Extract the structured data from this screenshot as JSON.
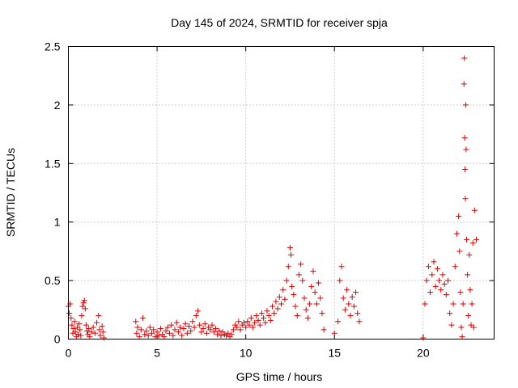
{
  "chart_data": {
    "type": "scatter",
    "title": "Day 145 of 2024, SRMTID for receiver spja",
    "xlabel": "GPS time / hours",
    "ylabel": "SRMTID / TECUs",
    "xlim": [
      0,
      24
    ],
    "ylim": [
      0,
      2.5
    ],
    "xticks": [
      0,
      5,
      10,
      15,
      20
    ],
    "yticks": [
      0,
      0.5,
      1,
      1.5,
      2,
      2.5
    ],
    "ytick_labels": [
      "0",
      "0.5",
      "1",
      "1.5",
      "2",
      "2.5"
    ],
    "grid": true,
    "marker": "+",
    "series": [
      {
        "name": "SRMTID",
        "color": "#e00000",
        "points": [
          [
            0.0,
            0.28
          ],
          [
            0.05,
            0.22
          ],
          [
            0.1,
            0.3
          ],
          [
            0.15,
            0.18
          ],
          [
            0.2,
            0.12
          ],
          [
            0.25,
            0.05
          ],
          [
            0.3,
            0.09
          ],
          [
            0.35,
            0.15
          ],
          [
            0.4,
            0.06
          ],
          [
            0.45,
            0.02
          ],
          [
            0.5,
            0.1
          ],
          [
            0.55,
            0.04
          ],
          [
            0.6,
            0.13
          ],
          [
            0.65,
            0.08
          ],
          [
            0.7,
            0.03
          ],
          [
            0.75,
            0.2
          ],
          [
            0.8,
            0.28
          ],
          [
            0.85,
            0.31
          ],
          [
            0.9,
            0.33
          ],
          [
            0.95,
            0.26
          ],
          [
            1.0,
            0.12
          ],
          [
            1.05,
            0.07
          ],
          [
            1.1,
            0.04
          ],
          [
            1.15,
            0.09
          ],
          [
            1.2,
            0.02
          ],
          [
            1.3,
            0.06
          ],
          [
            1.4,
            0.1
          ],
          [
            1.5,
            0.05
          ],
          [
            1.6,
            0.14
          ],
          [
            1.7,
            0.2
          ],
          [
            1.75,
            0.08
          ],
          [
            1.8,
            0.03
          ],
          [
            1.9,
            0.11
          ],
          [
            1.95,
            0.06
          ],
          [
            2.0,
            0.01
          ],
          [
            3.8,
            0.15
          ],
          [
            3.85,
            0.05
          ],
          [
            3.9,
            0.1
          ],
          [
            4.0,
            0.02
          ],
          [
            4.1,
            0.08
          ],
          [
            4.2,
            0.18
          ],
          [
            4.3,
            0.04
          ],
          [
            4.4,
            0.07
          ],
          [
            4.5,
            0.03
          ],
          [
            4.6,
            0.1
          ],
          [
            4.7,
            0.05
          ],
          [
            4.8,
            0.08
          ],
          [
            4.9,
            0.02
          ],
          [
            5.0,
            0.06
          ],
          [
            5.1,
            0.03
          ],
          [
            5.2,
            0.09
          ],
          [
            5.3,
            0.04
          ],
          [
            5.4,
            0.02
          ],
          [
            5.5,
            0.07
          ],
          [
            5.6,
            0.1
          ],
          [
            5.7,
            0.05
          ],
          [
            5.8,
            0.12
          ],
          [
            5.9,
            0.03
          ],
          [
            6.0,
            0.08
          ],
          [
            6.1,
            0.14
          ],
          [
            6.2,
            0.06
          ],
          [
            6.3,
            0.1
          ],
          [
            6.4,
            0.03
          ],
          [
            6.5,
            0.09
          ],
          [
            6.6,
            0.13
          ],
          [
            6.7,
            0.05
          ],
          [
            6.8,
            0.11
          ],
          [
            6.9,
            0.07
          ],
          [
            7.0,
            0.15
          ],
          [
            7.1,
            0.1
          ],
          [
            7.2,
            0.2
          ],
          [
            7.3,
            0.24
          ],
          [
            7.4,
            0.12
          ],
          [
            7.5,
            0.06
          ],
          [
            7.6,
            0.09
          ],
          [
            7.7,
            0.13
          ],
          [
            7.8,
            0.05
          ],
          [
            7.9,
            0.1
          ],
          [
            8.0,
            0.08
          ],
          [
            8.1,
            0.12
          ],
          [
            8.2,
            0.06
          ],
          [
            8.3,
            0.09
          ],
          [
            8.4,
            0.04
          ],
          [
            8.5,
            0.07
          ],
          [
            8.6,
            0.03
          ],
          [
            8.7,
            0.06
          ],
          [
            8.8,
            0.04
          ],
          [
            8.9,
            0.03
          ],
          [
            9.0,
            0.05
          ],
          [
            9.1,
            0.02
          ],
          [
            9.2,
            0.04
          ],
          [
            9.3,
            0.08
          ],
          [
            9.4,
            0.12
          ],
          [
            9.5,
            0.1
          ],
          [
            9.6,
            0.15
          ],
          [
            9.7,
            0.08
          ],
          [
            9.8,
            0.12
          ],
          [
            9.9,
            0.14
          ],
          [
            10.0,
            0.1
          ],
          [
            10.1,
            0.15
          ],
          [
            10.2,
            0.12
          ],
          [
            10.3,
            0.18
          ],
          [
            10.4,
            0.1
          ],
          [
            10.5,
            0.14
          ],
          [
            10.6,
            0.2
          ],
          [
            10.7,
            0.16
          ],
          [
            10.8,
            0.12
          ],
          [
            10.9,
            0.22
          ],
          [
            11.0,
            0.18
          ],
          [
            11.1,
            0.14
          ],
          [
            11.2,
            0.24
          ],
          [
            11.3,
            0.2
          ],
          [
            11.4,
            0.16
          ],
          [
            11.5,
            0.28
          ],
          [
            11.6,
            0.22
          ],
          [
            11.7,
            0.32
          ],
          [
            11.8,
            0.26
          ],
          [
            11.9,
            0.36
          ],
          [
            12.0,
            0.3
          ],
          [
            12.1,
            0.42
          ],
          [
            12.2,
            0.34
          ],
          [
            12.3,
            0.5
          ],
          [
            12.4,
            0.62
          ],
          [
            12.5,
            0.78
          ],
          [
            12.55,
            0.72
          ],
          [
            12.6,
            0.45
          ],
          [
            12.7,
            0.38
          ],
          [
            12.8,
            0.28
          ],
          [
            12.9,
            0.2
          ],
          [
            13.0,
            0.55
          ],
          [
            13.1,
            0.64
          ],
          [
            13.2,
            0.5
          ],
          [
            13.3,
            0.35
          ],
          [
            13.4,
            0.25
          ],
          [
            13.5,
            0.18
          ],
          [
            13.6,
            0.3
          ],
          [
            13.7,
            0.45
          ],
          [
            13.8,
            0.58
          ],
          [
            13.9,
            0.4
          ],
          [
            14.0,
            0.3
          ],
          [
            14.1,
            0.48
          ],
          [
            14.2,
            0.35
          ],
          [
            14.3,
            0.22
          ],
          [
            14.4,
            0.08
          ],
          [
            15.0,
            0.05
          ],
          [
            15.2,
            0.15
          ],
          [
            15.3,
            0.5
          ],
          [
            15.4,
            0.62
          ],
          [
            15.5,
            0.35
          ],
          [
            15.6,
            0.25
          ],
          [
            15.7,
            0.42
          ],
          [
            15.8,
            0.3
          ],
          [
            15.9,
            0.2
          ],
          [
            16.0,
            0.36
          ],
          [
            16.1,
            0.28
          ],
          [
            16.2,
            0.4
          ],
          [
            16.3,
            0.22
          ],
          [
            16.4,
            0.15
          ],
          [
            20.0,
            0.01
          ],
          [
            20.1,
            0.3
          ],
          [
            20.2,
            0.5
          ],
          [
            20.3,
            0.62
          ],
          [
            20.4,
            0.4
          ],
          [
            20.5,
            0.55
          ],
          [
            20.6,
            0.66
          ],
          [
            20.7,
            0.45
          ],
          [
            20.8,
            0.6
          ],
          [
            20.9,
            0.5
          ],
          [
            21.0,
            0.42
          ],
          [
            21.1,
            0.55
          ],
          [
            21.2,
            0.47
          ],
          [
            21.3,
            0.38
          ],
          [
            21.4,
            0.5
          ],
          [
            21.5,
            0.22
          ],
          [
            21.6,
            0.12
          ],
          [
            21.7,
            0.3
          ],
          [
            21.8,
            0.62
          ],
          [
            21.9,
            0.9
          ],
          [
            22.0,
            1.05
          ],
          [
            22.05,
            0.75
          ],
          [
            22.1,
            0.4
          ],
          [
            22.15,
            0.1
          ],
          [
            22.2,
            0.02
          ],
          [
            22.25,
            0.3
          ],
          [
            22.3,
            2.18
          ],
          [
            22.32,
            2.4
          ],
          [
            22.34,
            1.72
          ],
          [
            22.36,
            1.45
          ],
          [
            22.38,
            1.2
          ],
          [
            22.4,
            2.0
          ],
          [
            22.42,
            1.62
          ],
          [
            22.45,
            0.85
          ],
          [
            22.5,
            0.55
          ],
          [
            22.55,
            0.2
          ],
          [
            22.6,
            0.72
          ],
          [
            22.65,
            0.42
          ],
          [
            22.7,
            0.12
          ],
          [
            22.75,
            0.3
          ],
          [
            22.8,
            0.82
          ],
          [
            22.85,
            0.1
          ],
          [
            22.9,
            1.1
          ],
          [
            23.0,
            0.85
          ]
        ]
      }
    ]
  }
}
